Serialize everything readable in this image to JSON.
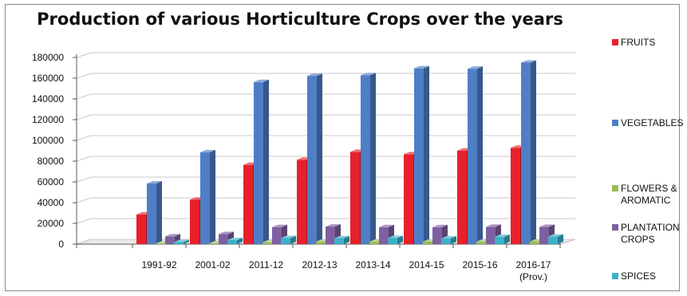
{
  "chart_data": {
    "type": "bar",
    "title": "Production of various Horticulture Crops over the years",
    "categories": [
      "1991-92",
      "2001-02",
      "2011-12",
      "2012-13",
      "2013-14",
      "2014-15",
      "2015-16",
      "2016-17 (Prov.)"
    ],
    "category_labels": [
      [
        "1991-92"
      ],
      [
        "2001-02"
      ],
      [
        "2011-12"
      ],
      [
        "2012-13"
      ],
      [
        "2013-14"
      ],
      [
        "2014-15"
      ],
      [
        "2015-16"
      ],
      [
        "2016-17",
        "(Prov.)"
      ]
    ],
    "ylim": [
      0,
      180000
    ],
    "yticks": [
      "0",
      "20000",
      "40000",
      "60000",
      "80000",
      "100000",
      "120000",
      "140000",
      "160000",
      "180000"
    ],
    "grid": true,
    "legend_position": "right",
    "series": [
      {
        "name": "FRUITS",
        "legend_lines": [
          "FRUITS"
        ],
        "color": "#e8202a",
        "values": [
          28600,
          43000,
          76400,
          81300,
          88900,
          86600,
          90200,
          92900
        ]
      },
      {
        "name": "VEGETABLES",
        "legend_lines": [
          "VEGETABLES"
        ],
        "color": "#4f7ec6",
        "values": [
          58500,
          88600,
          156300,
          162200,
          162900,
          169500,
          169100,
          175000
        ]
      },
      {
        "name": "FLOWERS & AROMATIC",
        "legend_lines": [
          "FLOWERS &",
          "AROMATIC"
        ],
        "color": "#9bbb59",
        "values": [
          500,
          700,
          1700,
          2300,
          2300,
          2400,
          2300,
          2500
        ]
      },
      {
        "name": "PLANTATION CROPS",
        "legend_lines": [
          "PLANTATION",
          "CROPS"
        ],
        "color": "#7f5fa0",
        "values": [
          7500,
          9700,
          16400,
          16900,
          16300,
          16300,
          16700,
          16600
        ]
      },
      {
        "name": "SPICES",
        "legend_lines": [
          "SPICES"
        ],
        "color": "#3cb0c8",
        "values": [
          1900,
          3800,
          5900,
          5700,
          5900,
          5500,
          7000,
          7300
        ]
      }
    ]
  }
}
